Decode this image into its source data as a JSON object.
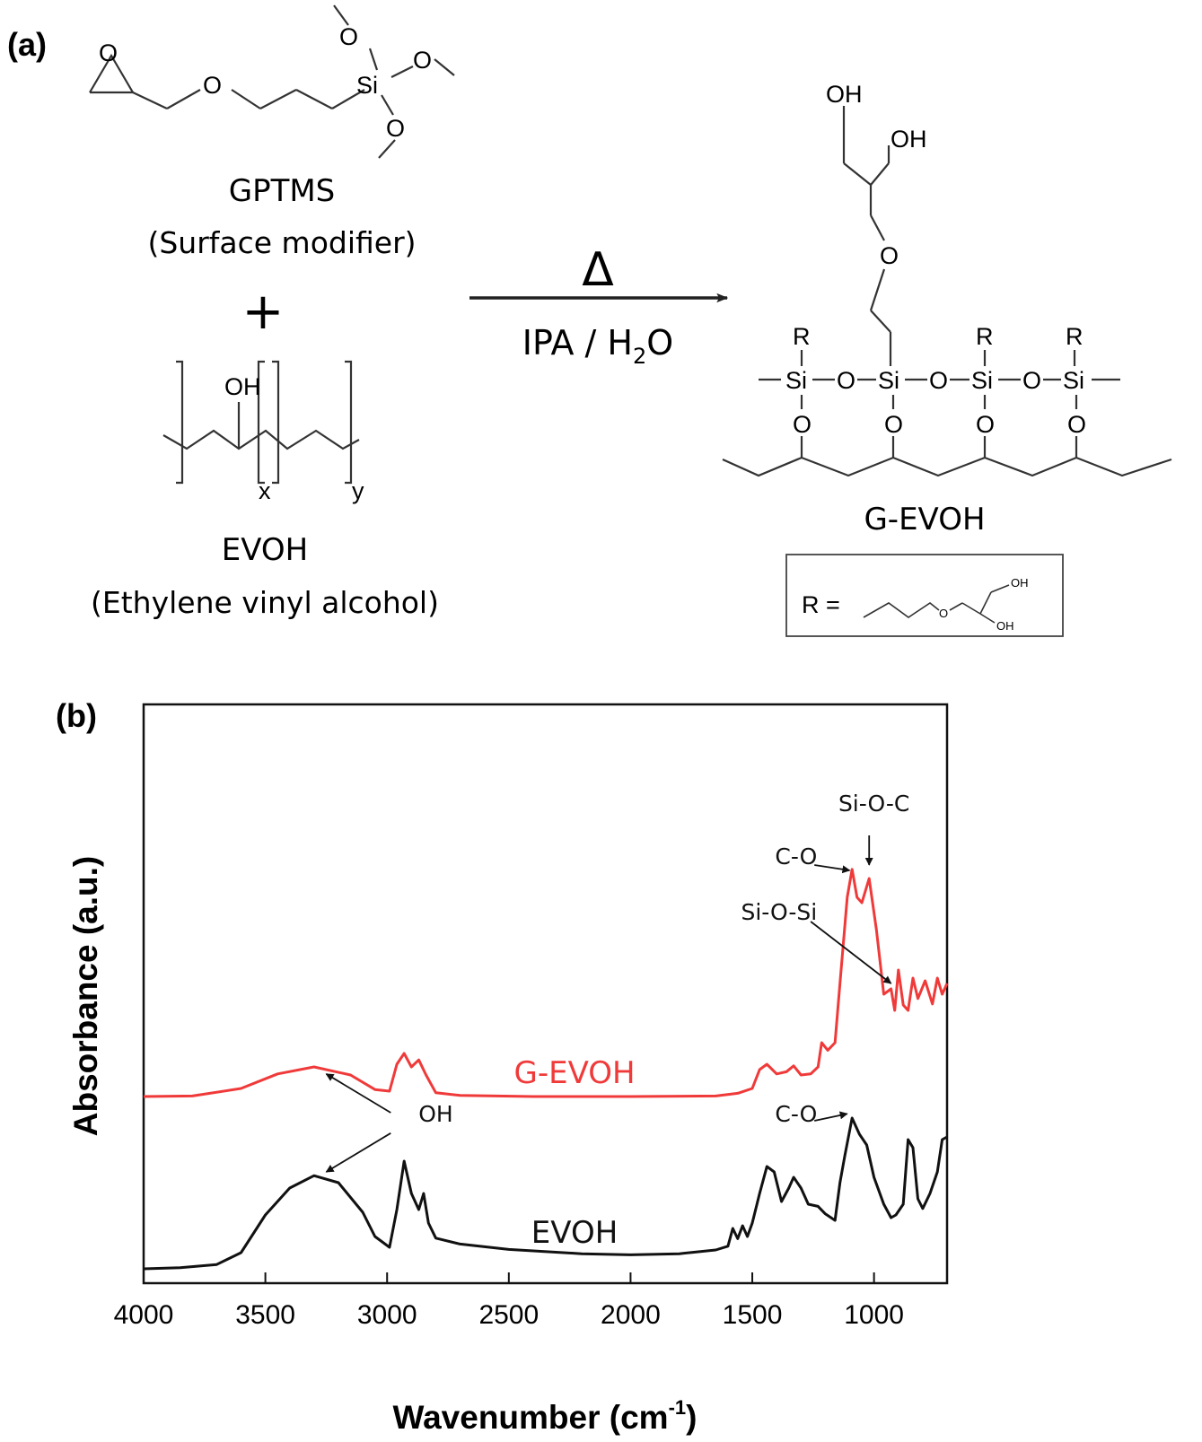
{
  "panel_a": {
    "label": "(a)",
    "gptms": {
      "name": "GPTMS",
      "desc": "(Surface modifier)"
    },
    "plus": "+",
    "evoh": {
      "name": "EVOH",
      "desc": "(Ethylene vinyl alcohol)",
      "sub_x": "x",
      "sub_y": "y"
    },
    "reaction": {
      "symbol": "Δ",
      "solvent_pre": "IPA / H",
      "solvent_sub": "2",
      "solvent_post": "O"
    },
    "product": {
      "name": "G-EVOH",
      "r_label": "R ="
    },
    "atoms": {
      "O": "O",
      "Si": "Si",
      "OH": "OH",
      "R": "R"
    }
  },
  "panel_b": {
    "label": "(b)"
  },
  "chart_data": {
    "type": "line",
    "xlabel": "Wavenumber (cm",
    "xlabel_sup": "-1",
    "xlabel_end": ")",
    "ylabel": "Absorbance (a.u.)",
    "xlim": [
      4000,
      700
    ],
    "x_reversed": true,
    "ylim": [
      0,
      1
    ],
    "xticks": [
      4000,
      3500,
      3000,
      2500,
      2000,
      1500,
      1000
    ],
    "yticks_shown": false,
    "grid": false,
    "legend": "none",
    "series": [
      {
        "name": "G-EVOH",
        "color": "#f03a3a",
        "points": [
          [
            4000,
            0.33
          ],
          [
            3800,
            0.331
          ],
          [
            3600,
            0.345
          ],
          [
            3450,
            0.372
          ],
          [
            3300,
            0.385
          ],
          [
            3150,
            0.37
          ],
          [
            3050,
            0.343
          ],
          [
            2990,
            0.34
          ],
          [
            2960,
            0.39
          ],
          [
            2930,
            0.41
          ],
          [
            2900,
            0.385
          ],
          [
            2870,
            0.398
          ],
          [
            2840,
            0.37
          ],
          [
            2800,
            0.337
          ],
          [
            2700,
            0.332
          ],
          [
            2400,
            0.33
          ],
          [
            2000,
            0.33
          ],
          [
            1650,
            0.331
          ],
          [
            1560,
            0.336
          ],
          [
            1500,
            0.345
          ],
          [
            1470,
            0.38
          ],
          [
            1440,
            0.39
          ],
          [
            1400,
            0.372
          ],
          [
            1360,
            0.376
          ],
          [
            1330,
            0.387
          ],
          [
            1300,
            0.37
          ],
          [
            1260,
            0.372
          ],
          [
            1230,
            0.385
          ],
          [
            1215,
            0.43
          ],
          [
            1190,
            0.416
          ],
          [
            1160,
            0.43
          ],
          [
            1140,
            0.54
          ],
          [
            1110,
            0.7
          ],
          [
            1090,
            0.752
          ],
          [
            1070,
            0.7
          ],
          [
            1050,
            0.69
          ],
          [
            1020,
            0.735
          ],
          [
            990,
            0.64
          ],
          [
            960,
            0.52
          ],
          [
            930,
            0.53
          ],
          [
            915,
            0.49
          ],
          [
            900,
            0.565
          ],
          [
            880,
            0.5
          ],
          [
            860,
            0.49
          ],
          [
            840,
            0.55
          ],
          [
            820,
            0.512
          ],
          [
            790,
            0.545
          ],
          [
            760,
            0.502
          ],
          [
            740,
            0.55
          ],
          [
            720,
            0.52
          ],
          [
            700,
            0.54
          ]
        ]
      },
      {
        "name": "EVOH",
        "color": "#111111",
        "points": [
          [
            4000,
            0.01
          ],
          [
            3850,
            0.012
          ],
          [
            3700,
            0.018
          ],
          [
            3600,
            0.04
          ],
          [
            3500,
            0.11
          ],
          [
            3400,
            0.16
          ],
          [
            3300,
            0.183
          ],
          [
            3200,
            0.17
          ],
          [
            3100,
            0.115
          ],
          [
            3050,
            0.07
          ],
          [
            2990,
            0.05
          ],
          [
            2960,
            0.12
          ],
          [
            2930,
            0.21
          ],
          [
            2900,
            0.15
          ],
          [
            2870,
            0.12
          ],
          [
            2850,
            0.15
          ],
          [
            2830,
            0.095
          ],
          [
            2800,
            0.067
          ],
          [
            2700,
            0.056
          ],
          [
            2500,
            0.046
          ],
          [
            2200,
            0.038
          ],
          [
            2000,
            0.036
          ],
          [
            1800,
            0.038
          ],
          [
            1650,
            0.045
          ],
          [
            1600,
            0.052
          ],
          [
            1580,
            0.085
          ],
          [
            1560,
            0.066
          ],
          [
            1540,
            0.09
          ],
          [
            1520,
            0.07
          ],
          [
            1500,
            0.095
          ],
          [
            1470,
            0.15
          ],
          [
            1440,
            0.2
          ],
          [
            1410,
            0.19
          ],
          [
            1380,
            0.135
          ],
          [
            1350,
            0.16
          ],
          [
            1330,
            0.18
          ],
          [
            1300,
            0.16
          ],
          [
            1270,
            0.13
          ],
          [
            1230,
            0.126
          ],
          [
            1200,
            0.112
          ],
          [
            1160,
            0.1
          ],
          [
            1140,
            0.17
          ],
          [
            1120,
            0.22
          ],
          [
            1090,
            0.29
          ],
          [
            1060,
            0.26
          ],
          [
            1030,
            0.24
          ],
          [
            1000,
            0.18
          ],
          [
            960,
            0.13
          ],
          [
            930,
            0.105
          ],
          [
            910,
            0.11
          ],
          [
            880,
            0.13
          ],
          [
            860,
            0.25
          ],
          [
            840,
            0.235
          ],
          [
            820,
            0.14
          ],
          [
            800,
            0.122
          ],
          [
            770,
            0.15
          ],
          [
            740,
            0.19
          ],
          [
            720,
            0.25
          ],
          [
            700,
            0.255
          ]
        ]
      }
    ],
    "series_labels": [
      {
        "text": "G-EVOH",
        "color": "#f03a3a",
        "x": 2230,
        "y": 0.355
      },
      {
        "text": "EVOH",
        "color": "#111111",
        "x": 2230,
        "y": 0.058
      }
    ],
    "annotations": [
      {
        "text": "Si-O-C",
        "x": 1000,
        "y": 0.86,
        "arrow_to": [
          1020,
          0.76
        ],
        "arrow_from": [
          1020,
          0.815
        ]
      },
      {
        "text": "C-O",
        "x": 1320,
        "y": 0.762,
        "arrow_to": [
          1100,
          0.75
        ],
        "arrow_from": [
          1245,
          0.76
        ]
      },
      {
        "text": "Si-O-Si",
        "x": 1390,
        "y": 0.658,
        "arrow_to": [
          930,
          0.54
        ],
        "arrow_from": [
          1260,
          0.655
        ]
      },
      {
        "text": "OH",
        "x": 2800,
        "y": 0.283,
        "arrow_to": [
          3250,
          0.372
        ],
        "arrow_from": [
          2985,
          0.3
        ]
      },
      {
        "text": "C-O",
        "x": 1320,
        "y": 0.283,
        "arrow_to": [
          1110,
          0.298
        ],
        "arrow_from": [
          1245,
          0.285
        ]
      }
    ],
    "extra_arrows": [
      {
        "arrow_from": [
          2985,
          0.262
        ],
        "arrow_to": [
          3250,
          0.19
        ]
      }
    ]
  }
}
